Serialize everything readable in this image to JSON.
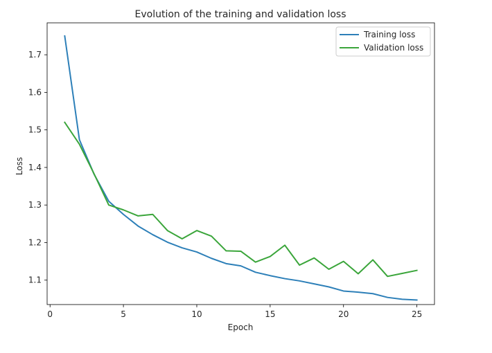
{
  "chart_data": {
    "type": "line",
    "title": "Evolution of the training and validation loss",
    "xlabel": "Epoch",
    "ylabel": "Loss",
    "xlim": [
      -0.2,
      26.2
    ],
    "ylim": [
      1.035,
      1.785
    ],
    "xticks": [
      0,
      5,
      10,
      15,
      20,
      25
    ],
    "xtick_labels": [
      "0",
      "5",
      "10",
      "15",
      "20",
      "25"
    ],
    "yticks": [
      1.1,
      1.2,
      1.3,
      1.4,
      1.5,
      1.6,
      1.7
    ],
    "ytick_labels": [
      "1.1",
      "1.2",
      "1.3",
      "1.4",
      "1.5",
      "1.6",
      "1.7"
    ],
    "grid": false,
    "legend_position": "top-right",
    "x": [
      1,
      2,
      3,
      4,
      5,
      6,
      7,
      8,
      9,
      10,
      11,
      12,
      13,
      14,
      15,
      16,
      17,
      18,
      19,
      20,
      21,
      22,
      23,
      24,
      25
    ],
    "series": [
      {
        "name": "Training loss",
        "color": "#2c7fb8",
        "values": [
          1.75,
          1.474,
          1.382,
          1.31,
          1.275,
          1.244,
          1.221,
          1.201,
          1.186,
          1.175,
          1.158,
          1.144,
          1.138,
          1.121,
          1.112,
          1.104,
          1.098,
          1.09,
          1.082,
          1.071,
          1.068,
          1.064,
          1.054,
          1.049,
          1.047
        ]
      },
      {
        "name": "Validation loss",
        "color": "#3aa53a",
        "values": [
          1.52,
          1.462,
          1.383,
          1.3,
          1.287,
          1.271,
          1.275,
          1.232,
          1.21,
          1.232,
          1.217,
          1.178,
          1.177,
          1.148,
          1.163,
          1.193,
          1.14,
          1.159,
          1.129,
          1.15,
          1.117,
          1.154,
          1.11,
          1.118,
          1.126
        ]
      }
    ]
  }
}
